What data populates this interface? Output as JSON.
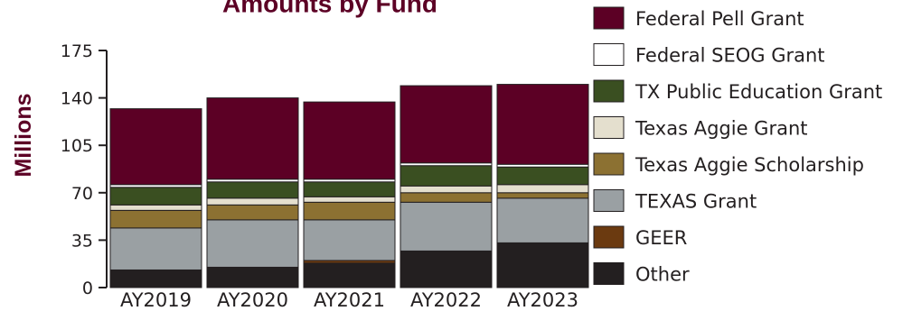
{
  "chart_data": {
    "type": "bar",
    "stacked": true,
    "title": "Amounts by Fund",
    "ylabel": "Millions",
    "xlabel": "",
    "categories": [
      "AY2019",
      "AY2020",
      "AY2021",
      "AY2022",
      "AY2023"
    ],
    "yticks": [
      "0",
      "35",
      "70",
      "105",
      "140",
      "175"
    ],
    "ylim": [
      0,
      175
    ],
    "grid": false,
    "legend_position": "right",
    "series": [
      {
        "name": "Other",
        "color": "#231f20",
        "values": [
          13,
          15,
          18,
          27,
          33
        ]
      },
      {
        "name": "GEER",
        "color": "#6b3a10",
        "values": [
          0,
          0,
          2,
          0,
          0
        ]
      },
      {
        "name": "TEXAS Grant",
        "color": "#9aa0a3",
        "values": [
          31,
          35,
          30,
          36,
          33
        ]
      },
      {
        "name": "Texas Aggie Scholarship",
        "color": "#8c7132",
        "values": [
          13,
          11,
          13,
          7,
          4
        ]
      },
      {
        "name": "Texas Aggie Grant",
        "color": "#e4dfce",
        "values": [
          4,
          5,
          4,
          5,
          6
        ]
      },
      {
        "name": "TX Public Education Grant",
        "color": "#3a4f21",
        "values": [
          13,
          12,
          11,
          15,
          13
        ]
      },
      {
        "name": "Federal SEOG Grant",
        "color": "#ffffff",
        "values": [
          2,
          2,
          2,
          2,
          2
        ]
      },
      {
        "name": "Federal Pell Grant",
        "color": "#5c0025",
        "values": [
          56,
          60,
          57,
          57,
          59
        ]
      }
    ],
    "legend_order": [
      "Federal Pell Grant",
      "Federal SEOG Grant",
      "TX Public Education Grant",
      "Texas Aggie Grant",
      "Texas Aggie Scholarship",
      "TEXAS Grant",
      "GEER",
      "Other"
    ],
    "colors": {
      "title": "#5c0025",
      "ylabel": "#5c0025",
      "axis": "#231f20"
    }
  }
}
